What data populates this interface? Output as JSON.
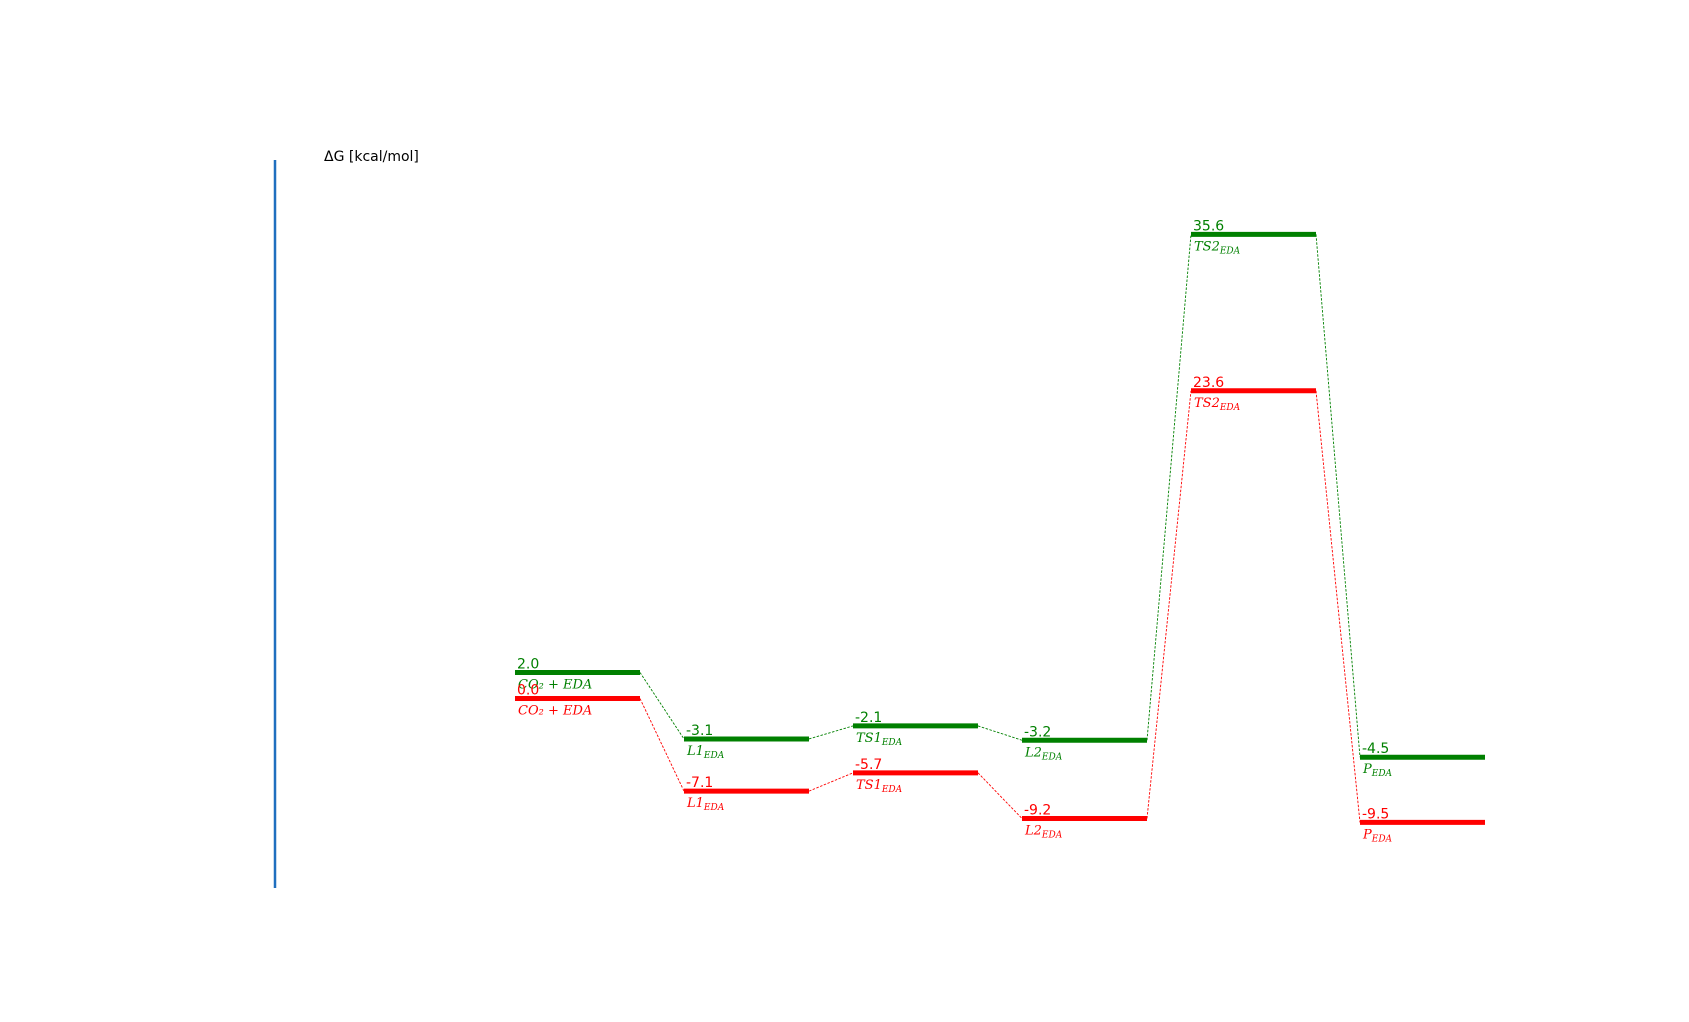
{
  "chart_data": {
    "type": "line",
    "title": "",
    "ylabel": "ΔG [kcal/mol]",
    "xlabel": "",
    "ylim": [
      -12,
      39
    ],
    "grid": false,
    "categories": [
      "CO2+EDA",
      "L1",
      "TS1",
      "L2",
      "TS2",
      "P"
    ],
    "level_labels": [
      {
        "main": "CO₂ + EDA",
        "sub": ""
      },
      {
        "main": "L1",
        "sub": "EDA"
      },
      {
        "main": "TS1",
        "sub": "EDA"
      },
      {
        "main": "L2",
        "sub": "EDA"
      },
      {
        "main": "TS2",
        "sub": "EDA"
      },
      {
        "main": "P",
        "sub": "EDA"
      }
    ],
    "series": [
      {
        "color": "#008000",
        "values": [
          2.0,
          -3.1,
          -2.1,
          -3.2,
          35.6,
          -4.5
        ],
        "labels": [
          "2.0",
          "-3.1",
          "-2.1",
          "-3.2",
          "35.6",
          "-4.5"
        ]
      },
      {
        "color": "#ff0000",
        "values": [
          0.0,
          -7.1,
          -5.7,
          -9.2,
          23.6,
          -9.5
        ],
        "labels": [
          "0.0",
          "-7.1",
          "-5.7",
          "-9.2",
          "23.6",
          "-9.5"
        ]
      }
    ],
    "axis_color": "#1f6fbf"
  }
}
